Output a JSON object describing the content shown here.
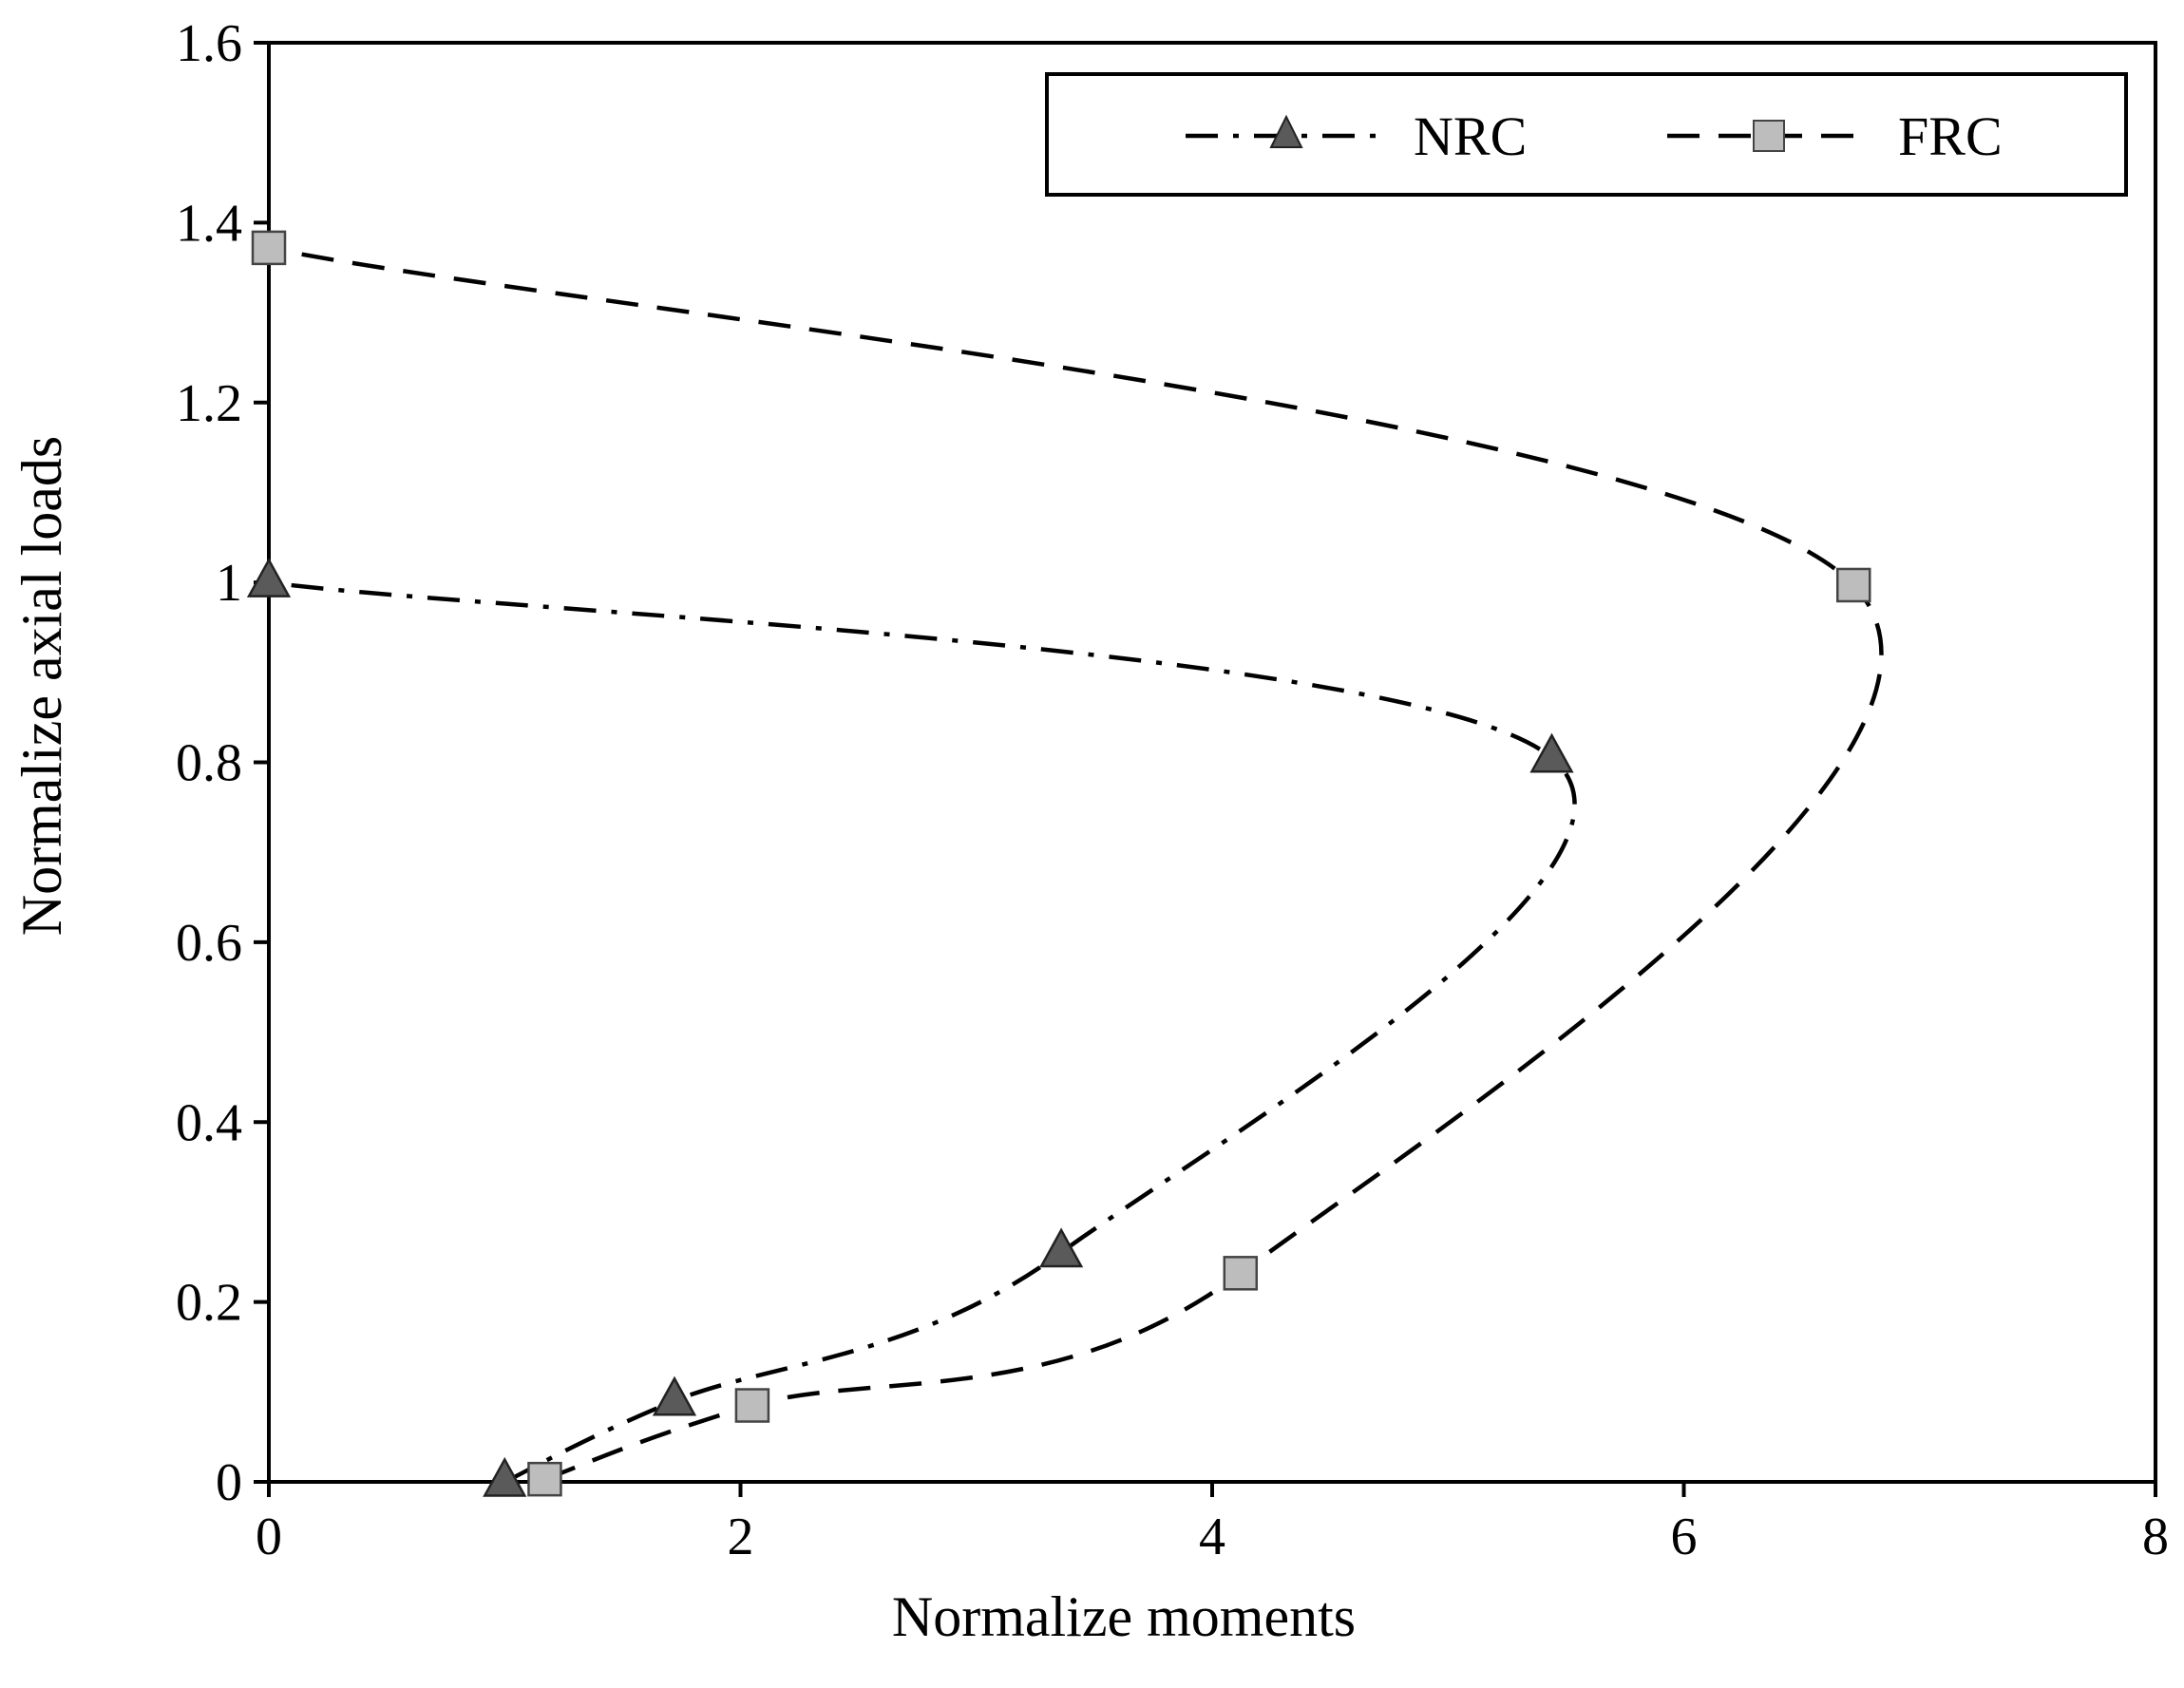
{
  "chart_data": {
    "type": "line",
    "xlabel": "Normalize moments",
    "ylabel": "Normalize axial loads",
    "xlim": [
      0,
      8
    ],
    "ylim": [
      0,
      1.6
    ],
    "x_ticks": [
      "0",
      "2",
      "4",
      "6",
      "8"
    ],
    "y_ticks": [
      "0",
      "0.2",
      "0.4",
      "0.6",
      "0.8",
      "1",
      "1.2",
      "1.4",
      "1.6"
    ],
    "grid": false,
    "legend_position": "top",
    "series": [
      {
        "name": "NRC",
        "marker": "triangle",
        "line_style": "dash-dot",
        "marker_color": "#5a5a5a",
        "points": [
          {
            "x": 1.0,
            "y": 0.0
          },
          {
            "x": 1.72,
            "y": 0.09
          },
          {
            "x": 3.36,
            "y": 0.255
          },
          {
            "x": 5.44,
            "y": 0.805
          },
          {
            "x": 0.0,
            "y": 1.0
          }
        ]
      },
      {
        "name": "FRC",
        "marker": "square",
        "line_style": "dashed",
        "marker_color": "#bdbdbd",
        "points": [
          {
            "x": 1.17,
            "y": 0.003
          },
          {
            "x": 2.05,
            "y": 0.085
          },
          {
            "x": 4.12,
            "y": 0.232
          },
          {
            "x": 6.72,
            "y": 0.997
          },
          {
            "x": 0.0,
            "y": 1.372
          }
        ]
      }
    ]
  }
}
